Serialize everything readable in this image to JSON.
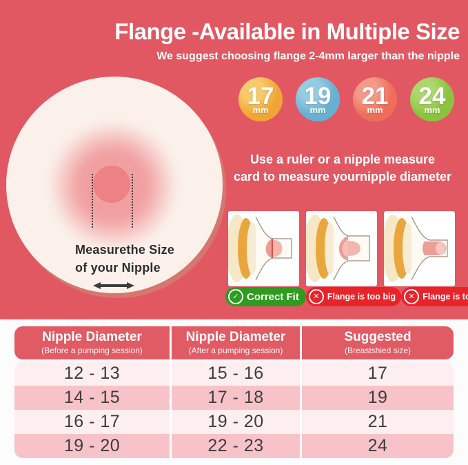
{
  "header": {
    "title": "Flange -Available in Multiple Size",
    "subtitle": "We suggest choosing flange 2-4mm larger than the nipple"
  },
  "sizes": [
    {
      "value": "17",
      "unit": "mm",
      "color": "#F0A535",
      "highlight": "#F8CA6B"
    },
    {
      "value": "19",
      "unit": "mm",
      "color": "#67B0D1",
      "highlight": "#94CBE1"
    },
    {
      "value": "21",
      "unit": "mm",
      "color": "#EE6E5A",
      "highlight": "#F59A89"
    },
    {
      "value": "24",
      "unit": "mm",
      "color": "#8AC43E",
      "highlight": "#ACD76C"
    }
  ],
  "diagram": {
    "caption_line1": "Measurethe Size",
    "caption_line2": "of your Nipple"
  },
  "instruction": {
    "line1": "Use a ruler or a nipple measure",
    "line2": "card to measure yournipple diameter"
  },
  "fit_guide": {
    "correct_color": "#2E9C1F",
    "wrong_color": "#E8242B",
    "items": [
      {
        "label": "Correct Fit",
        "status": "correct",
        "icon": "check-icon",
        "variant": "correct"
      },
      {
        "label": "Flange is too big",
        "status": "wrong",
        "icon": "cross-icon",
        "variant": "too-big"
      },
      {
        "label": "Flange is too Small",
        "status": "wrong",
        "icon": "cross-icon",
        "variant": "too-small"
      }
    ]
  },
  "table": {
    "headers": [
      {
        "title": "Nipple Diameter",
        "subtitle": "(Before a pumping session)"
      },
      {
        "title": "Nipple Diameter",
        "subtitle": "(After a pumping session)"
      },
      {
        "title": "Suggested",
        "subtitle": "(Breastshied size)"
      }
    ],
    "rows": [
      [
        "12 - 13",
        "15 - 16",
        "17"
      ],
      [
        "14 - 15",
        "17 - 18",
        "19"
      ],
      [
        "16 - 17",
        "19 - 20",
        "21"
      ],
      [
        "19 - 20",
        "22 - 23",
        "24"
      ]
    ]
  },
  "colors": {
    "page_background": "#E25862",
    "table_header": "#E15B65",
    "row_light": "#FDEFEF",
    "row_dark": "#F8C3C8"
  }
}
